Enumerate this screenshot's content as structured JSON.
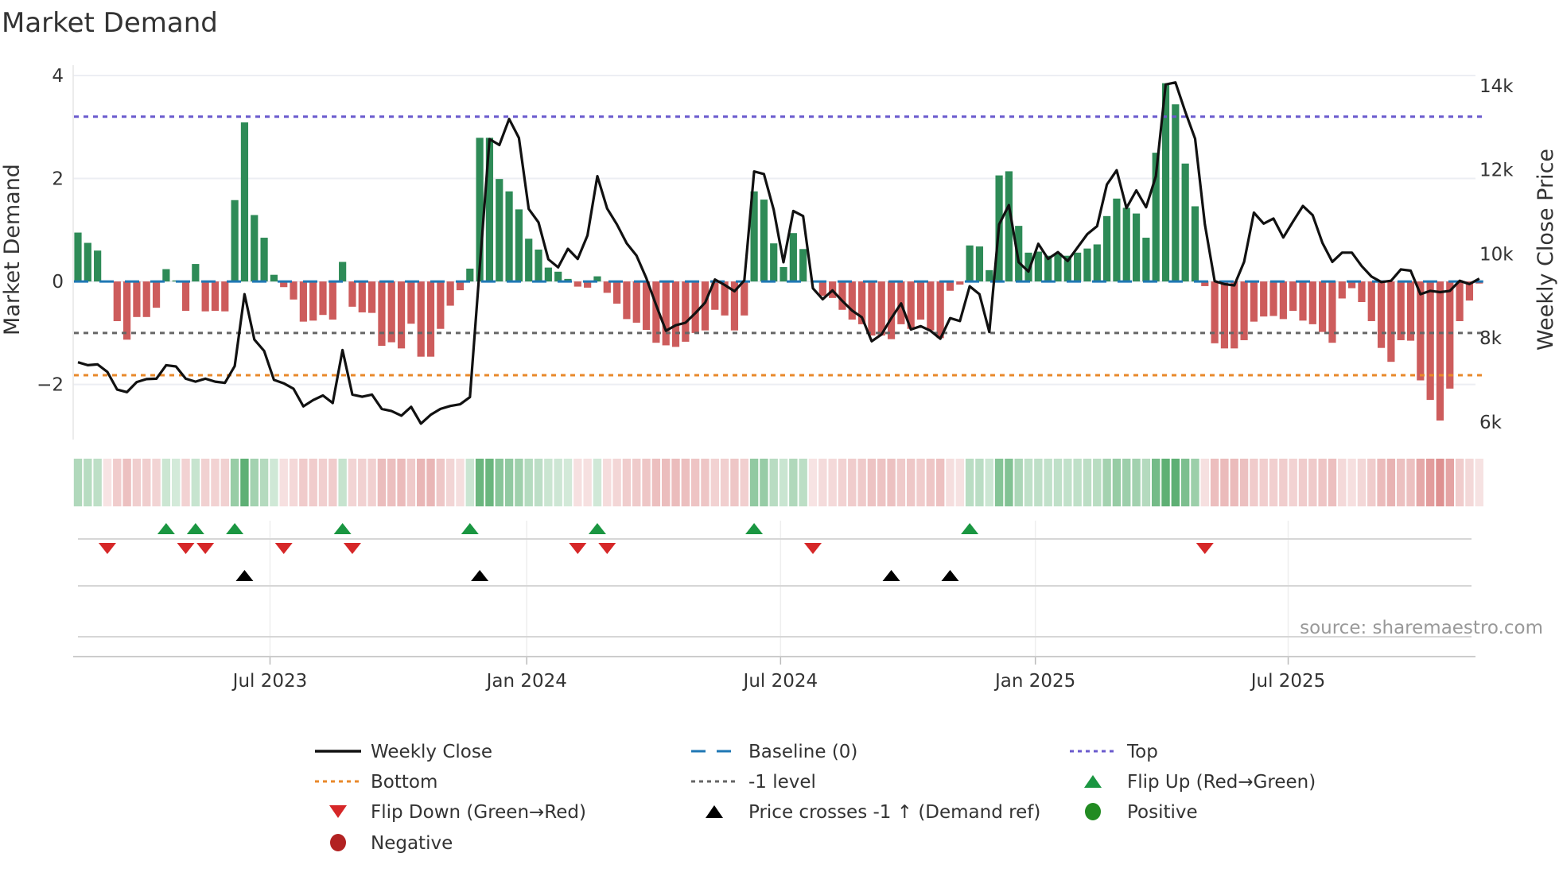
{
  "title": "Market Demand",
  "source": "source: sharemaestro.com",
  "chart_data": {
    "type": "bar",
    "title": "Market Demand",
    "ylabel": "Market Demand",
    "y2label": "Weekly Close Price",
    "x_unit": "week index",
    "ylim": [
      -3.07,
      4.2
    ],
    "y2lim": [
      5580,
      14490
    ],
    "grid": true,
    "legend_placement": "bottom-center",
    "yticks": [
      {
        "value": 4,
        "label": "4"
      },
      {
        "value": 2,
        "label": "2"
      },
      {
        "value": 0,
        "label": "0"
      },
      {
        "value": -2,
        "label": "−2"
      }
    ],
    "y2ticks": [
      {
        "value": 14000,
        "label": "14k"
      },
      {
        "value": 12000,
        "label": "12k"
      },
      {
        "value": 10000,
        "label": "10k"
      },
      {
        "value": 8000,
        "label": "8k"
      },
      {
        "value": 6000,
        "label": "6k"
      }
    ],
    "xticks": [
      {
        "week": 19.6,
        "label": "Jul 2023"
      },
      {
        "week": 45.8,
        "label": "Jan 2024"
      },
      {
        "week": 71.7,
        "label": "Jul 2024"
      },
      {
        "week": 97.7,
        "label": "Jan 2025"
      },
      {
        "week": 123.5,
        "label": "Jul 2025"
      }
    ],
    "levels": {
      "top": 3.2,
      "bottom": -1.82,
      "minus_one": -1,
      "baseline": 0
    },
    "demand": [
      0.95,
      0.75,
      0.6,
      0,
      -0.77,
      -1.13,
      -0.69,
      -0.69,
      -0.51,
      0.24,
      0.02,
      -0.57,
      0.34,
      -0.58,
      -0.57,
      -0.58,
      1.58,
      3.09,
      1.29,
      0.85,
      0.13,
      -0.11,
      -0.35,
      -0.78,
      -0.76,
      -0.65,
      -0.74,
      0.38,
      -0.49,
      -0.6,
      -0.61,
      -1.25,
      -1.18,
      -1.3,
      -0.82,
      -1.46,
      -1.46,
      -0.92,
      -0.47,
      -0.17,
      0.25,
      2.79,
      2.79,
      1.99,
      1.75,
      1.4,
      0.83,
      0.62,
      0.27,
      0.19,
      0.05,
      -0.1,
      -0.12,
      0.1,
      -0.22,
      -0.43,
      -0.73,
      -0.8,
      -0.94,
      -1.19,
      -1.24,
      -1.27,
      -1.17,
      -1.0,
      -0.95,
      -0.55,
      -0.66,
      -0.95,
      -0.66,
      1.75,
      1.59,
      0.74,
      0.28,
      0.94,
      0.63,
      0,
      -0.28,
      -0.32,
      -0.55,
      -0.74,
      -0.83,
      -1.05,
      -1.05,
      -1.12,
      -0.83,
      -0.92,
      -0.74,
      -0.95,
      -1.1,
      -0.18,
      -0.06,
      0.7,
      0.68,
      0.22,
      2.06,
      2.14,
      1.08,
      0.56,
      0.58,
      0.5,
      0.55,
      0.5,
      0.56,
      0.64,
      0.72,
      1.27,
      1.61,
      1.43,
      1.32,
      0.85,
      2.5,
      3.85,
      3.44,
      2.29,
      1.46,
      -0.09,
      -1.2,
      -1.3,
      -1.3,
      -1.14,
      -0.78,
      -0.68,
      -0.67,
      -0.73,
      -0.57,
      -0.76,
      -0.83,
      -0.98,
      -1.19,
      -0.33,
      -0.13,
      -0.4,
      -0.77,
      -1.29,
      -1.56,
      -1.14,
      -1.15,
      -1.92,
      -2.3,
      -2.7,
      -2.08,
      -0.77,
      -0.37,
      -0.04
    ],
    "weekly_close": [
      7420,
      7350,
      7370,
      7190,
      6770,
      6710,
      6950,
      7020,
      7030,
      7350,
      7320,
      7030,
      6960,
      7030,
      6960,
      6930,
      7330,
      9040,
      7960,
      7690,
      7000,
      6920,
      6790,
      6370,
      6520,
      6630,
      6450,
      7710,
      6650,
      6600,
      6650,
      6310,
      6260,
      6150,
      6360,
      5960,
      6170,
      6310,
      6380,
      6420,
      6590,
      9670,
      12730,
      12590,
      13210,
      12760,
      11070,
      10750,
      9870,
      9680,
      10120,
      9880,
      10440,
      11850,
      11080,
      10700,
      10250,
      9960,
      9420,
      8780,
      8170,
      8300,
      8360,
      8590,
      8840,
      9390,
      9260,
      9110,
      9370,
      11960,
      11900,
      11050,
      9800,
      11020,
      10900,
      9180,
      8920,
      9130,
      8880,
      8650,
      8490,
      7920,
      8080,
      8470,
      8820,
      8200,
      8280,
      8170,
      7980,
      8470,
      8400,
      9230,
      9040,
      8140,
      10700,
      11160,
      9800,
      9580,
      10240,
      9880,
      10040,
      9830,
      10150,
      10470,
      10660,
      11650,
      11990,
      11090,
      11510,
      11110,
      11850,
      14030,
      14080,
      13380,
      12740,
      10700,
      9350,
      9280,
      9250,
      9810,
      10980,
      10720,
      10840,
      10390,
      10770,
      11140,
      10920,
      10260,
      9810,
      10030,
      10030,
      9710,
      9460,
      9330,
      9360,
      9630,
      9600,
      9040,
      9120,
      9090,
      9120,
      9360,
      9280,
      9410
    ],
    "flip_up_weeks": [
      9,
      12,
      16,
      27,
      40,
      53,
      69,
      91
    ],
    "flip_down_weeks": [
      3,
      11,
      13,
      21,
      28,
      51,
      54,
      75,
      115
    ],
    "price_cross_weeks": [
      17,
      41,
      83,
      89
    ],
    "legend": [
      {
        "label": "Weekly Close",
        "symbol": "line-solid",
        "color": "#111111"
      },
      {
        "label": "Baseline (0)",
        "symbol": "line-dash",
        "color": "#1f77b4"
      },
      {
        "label": "Top",
        "symbol": "line-dot",
        "color": "#6a5acd"
      },
      {
        "label": "Bottom",
        "symbol": "line-dot",
        "color": "#e8892b"
      },
      {
        "label": "-1 level",
        "symbol": "line-dot",
        "color": "#666666"
      },
      {
        "label": "Flip Up (Red→Green)",
        "symbol": "triangle-up",
        "color": "#1a9641"
      },
      {
        "label": "Flip Down (Green→Red)",
        "symbol": "triangle-down",
        "color": "#d62728"
      },
      {
        "label": "Price crosses -1 ↑ (Demand ref)",
        "symbol": "triangle-up",
        "color": "#000000"
      },
      {
        "label": "Positive",
        "symbol": "circle",
        "color": "#228b22"
      },
      {
        "label": "Negative",
        "symbol": "circle",
        "color": "#b22222"
      }
    ],
    "colors": {
      "positive_bar": "#2e8b57",
      "negative_bar": "#cd5c5c",
      "price_line": "#111111",
      "baseline": "#1f77b4",
      "top": "#6a5acd",
      "bottom": "#e8892b",
      "minus_one": "#666666",
      "flip_up": "#1a9641",
      "flip_down": "#d62728",
      "price_cross": "#000000"
    }
  }
}
